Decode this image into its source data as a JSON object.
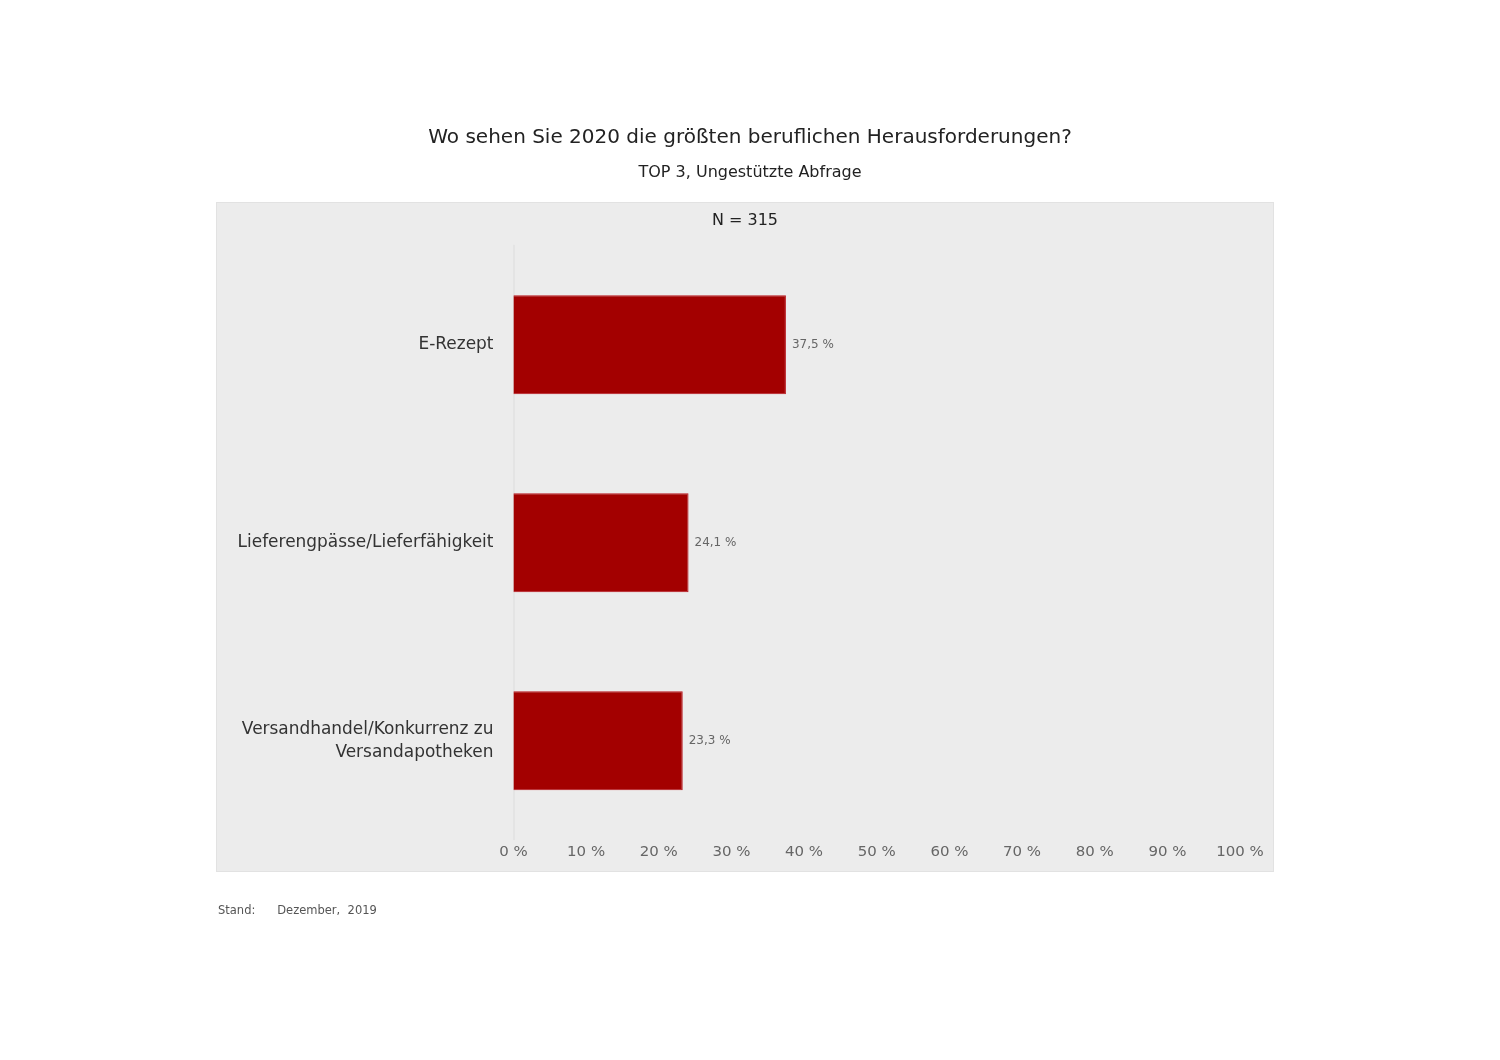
{
  "chart_data": {
    "type": "bar",
    "orientation": "horizontal",
    "title": "Wo sehen Sie 2020 die größten beruflichen Herausforderungen?",
    "subtitle": "TOP 3, Ungestützte Abfrage",
    "categories": [
      "E-Rezept",
      "Lieferengpässe/Lieferfähigkeit",
      "Versandhandel/Konkurrenz zu Versandapotheken"
    ],
    "values": [
      37.5,
      24.1,
      23.3
    ],
    "value_labels": [
      "37,5 %",
      "24,1 %",
      "23,3 %"
    ],
    "color": "#a30000",
    "xlim": [
      0,
      100
    ],
    "xticks": [
      {
        "value": 0,
        "label": "0 %"
      },
      {
        "value": 10,
        "label": "10 %"
      },
      {
        "value": 20,
        "label": "20 %"
      },
      {
        "value": 30,
        "label": "30 %"
      },
      {
        "value": 40,
        "label": "40 %"
      },
      {
        "value": 50,
        "label": "50 %"
      },
      {
        "value": 60,
        "label": "60 %"
      },
      {
        "value": 70,
        "label": "70 %"
      },
      {
        "value": 80,
        "label": "80 %"
      },
      {
        "value": 90,
        "label": "90 %"
      },
      {
        "value": 100,
        "label": "100 %"
      }
    ],
    "grid": false,
    "legend": false,
    "annotations": [
      "N = 315",
      "Stand:      Dezember,  2019"
    ]
  }
}
